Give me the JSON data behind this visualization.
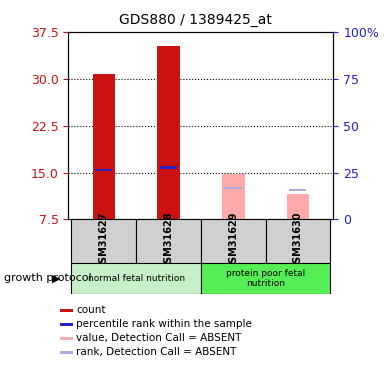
{
  "title": "GDS880 / 1389425_at",
  "samples": [
    "GSM31627",
    "GSM31628",
    "GSM31629",
    "GSM31630"
  ],
  "red_bar_values": [
    30.7,
    35.2,
    null,
    null
  ],
  "pink_bar_values": [
    null,
    null,
    14.8,
    11.5
  ],
  "blue_marker_values": [
    15.4,
    15.8,
    null,
    null
  ],
  "lavender_marker_values": [
    null,
    null,
    12.5,
    12.2
  ],
  "ylim_left": [
    7.5,
    37.5
  ],
  "ylim_right": [
    0,
    100
  ],
  "yticks_left": [
    7.5,
    15.0,
    22.5,
    30.0,
    37.5
  ],
  "yticks_right": [
    0,
    25,
    50,
    75,
    100
  ],
  "ytick_labels_right": [
    "0",
    "25",
    "50",
    "75",
    "100%"
  ],
  "bar_width": 0.35,
  "red_color": "#CC1111",
  "pink_color": "#FFAAAA",
  "blue_color": "#2222CC",
  "lavender_color": "#AAAADD",
  "group1_color": "#C8F0C8",
  "group2_color": "#55EE55",
  "sample_box_color": "#D0D0D0",
  "grid_dotted_ticks": [
    15.0,
    22.5,
    30.0
  ],
  "legend_items": [
    "count",
    "percentile rank within the sample",
    "value, Detection Call = ABSENT",
    "rank, Detection Call = ABSENT"
  ],
  "legend_colors": [
    "#CC1111",
    "#2222CC",
    "#FFAAAA",
    "#AAAADD"
  ],
  "group1_label": "normal fetal nutrition",
  "group2_label": "protein poor fetal\nnutrition",
  "growth_protocol_label": "growth protocol"
}
